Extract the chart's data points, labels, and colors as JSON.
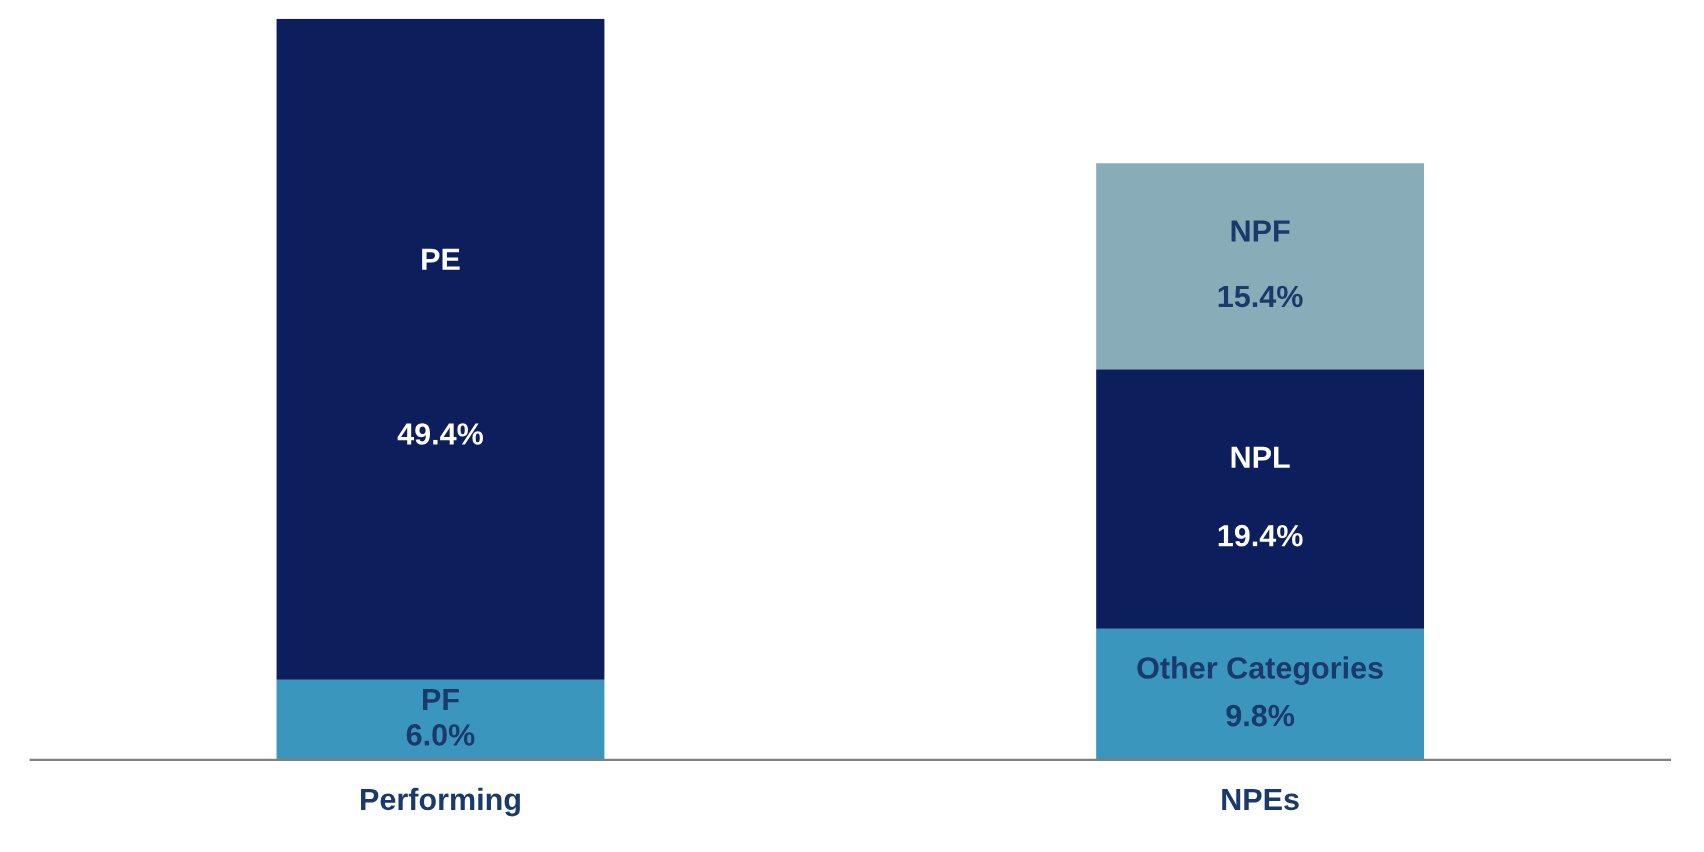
{
  "chart_data": {
    "type": "bar",
    "stacked": true,
    "categories": [
      "Performing",
      "NPEs"
    ],
    "series": [
      {
        "name": "PF",
        "color": "#3a96bd",
        "values": [
          6.0,
          null
        ],
        "value_labels": [
          "6.0%",
          null
        ]
      },
      {
        "name": "PE",
        "color": "#0c1f5c",
        "values": [
          49.4,
          null
        ],
        "value_labels": [
          "49.4%",
          null
        ]
      },
      {
        "name": "Other Categories",
        "color": "#3a96bd",
        "values": [
          null,
          9.8
        ],
        "value_labels": [
          null,
          "9.8%"
        ]
      },
      {
        "name": "NPL",
        "color": "#0c1f5c",
        "values": [
          null,
          19.4
        ],
        "value_labels": [
          null,
          "19.4%"
        ]
      },
      {
        "name": "NPF",
        "color": "#88adb8",
        "values": [
          null,
          15.4
        ],
        "value_labels": [
          null,
          "15.4%"
        ]
      }
    ],
    "grid": false,
    "legend": false,
    "tick_labels": "x"
  }
}
